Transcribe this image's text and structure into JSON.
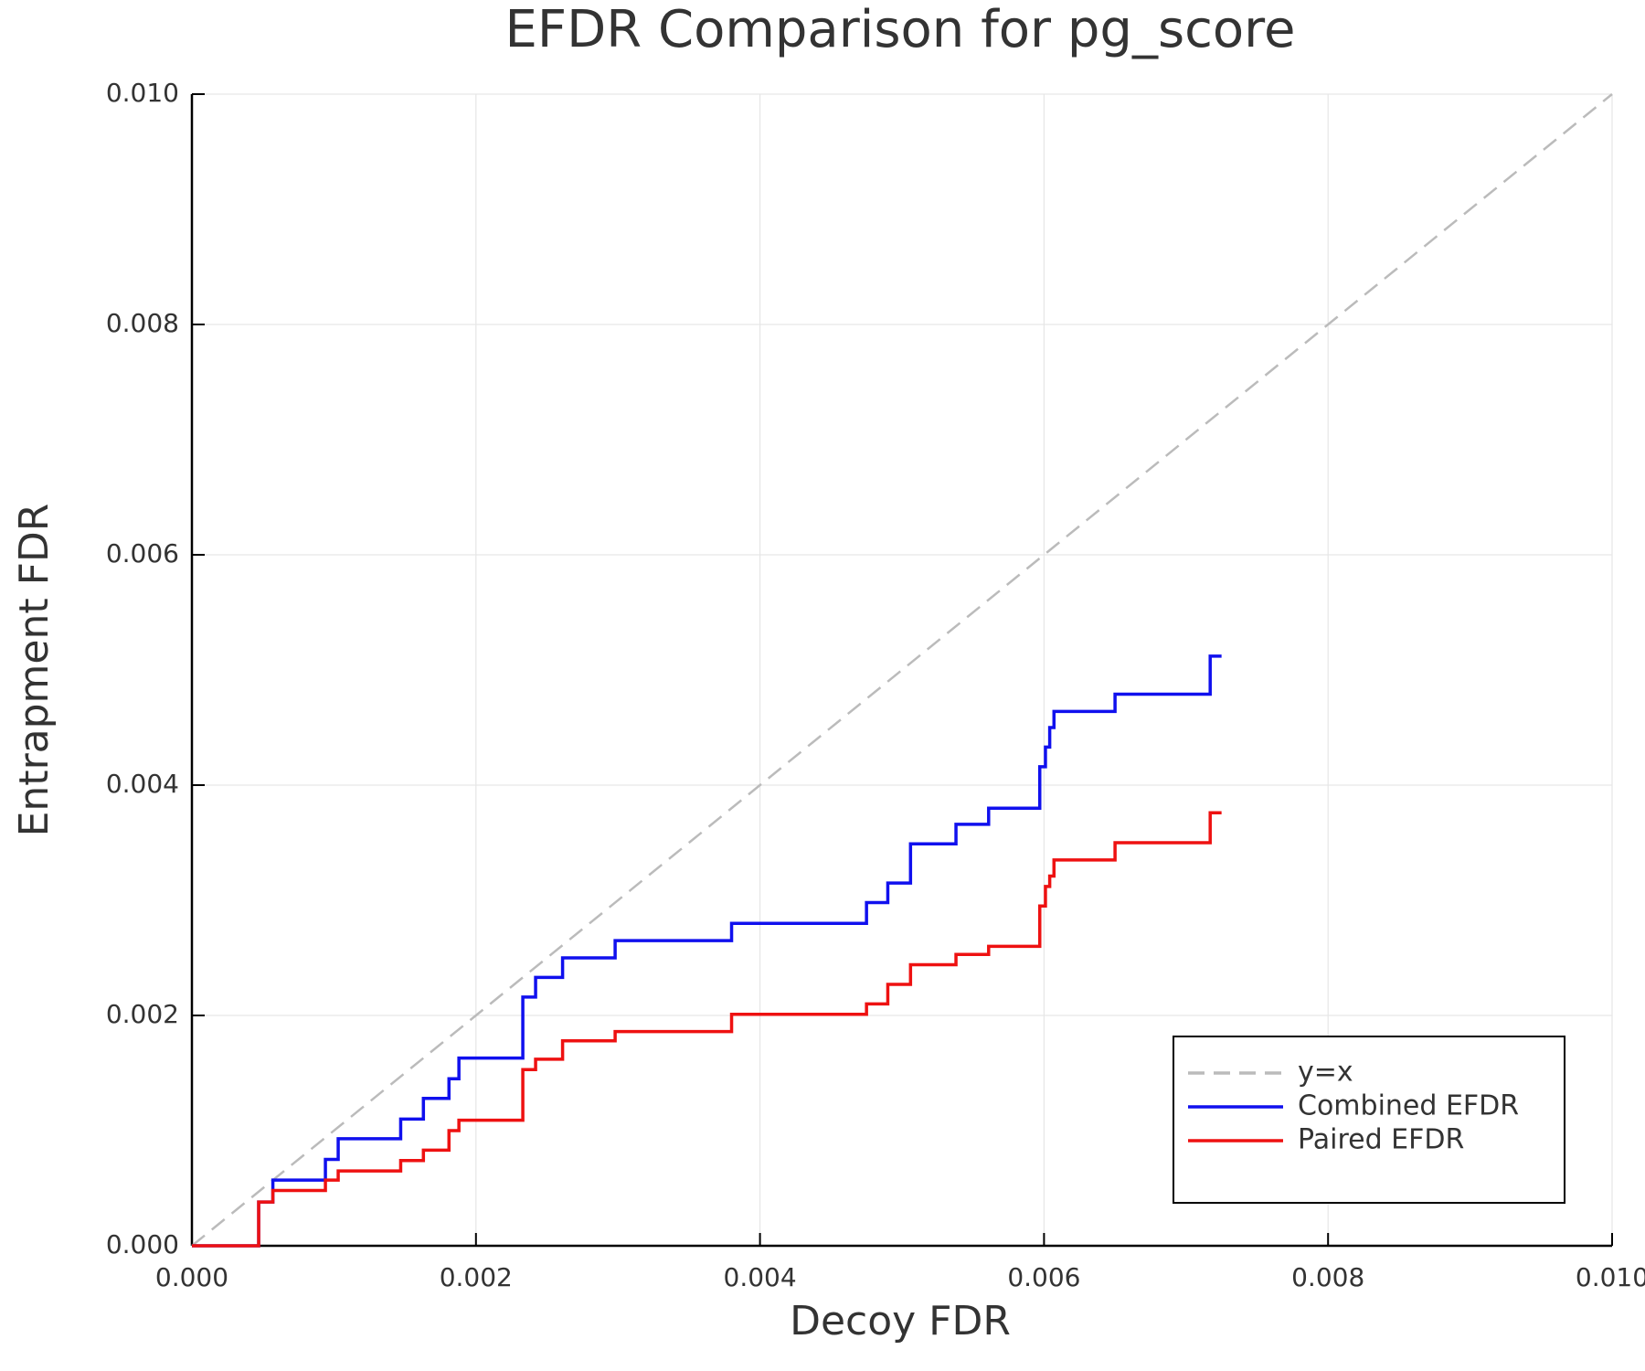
{
  "chart_data": {
    "type": "line",
    "step": "post",
    "title": "EFDR Comparison for pg_score",
    "xlabel": "Decoy FDR",
    "ylabel": "Entrapment FDR",
    "xlim": [
      0,
      0.01
    ],
    "ylim": [
      0,
      0.01
    ],
    "grid": true,
    "legend": "lower right",
    "xticks": [
      {
        "value": 0,
        "label": "0.000"
      },
      {
        "value": 0.002,
        "label": "0.002"
      },
      {
        "value": 0.004,
        "label": "0.004"
      },
      {
        "value": 0.006,
        "label": "0.006"
      },
      {
        "value": 0.008,
        "label": "0.008"
      },
      {
        "value": 0.01,
        "label": "0.010"
      }
    ],
    "yticks": [
      {
        "value": 0,
        "label": "0.000"
      },
      {
        "value": 0.002,
        "label": "0.002"
      },
      {
        "value": 0.004,
        "label": "0.004"
      },
      {
        "value": 0.006,
        "label": "0.006"
      },
      {
        "value": 0.008,
        "label": "0.008"
      },
      {
        "value": 0.01,
        "label": "0.010"
      }
    ],
    "series": [
      {
        "name": "y=x",
        "color": "#bbbbbb",
        "line_style": "dashed",
        "x": [
          0,
          0.01
        ],
        "values": [
          0,
          0.01
        ]
      },
      {
        "name": "Combined EFDR",
        "color": "#1010ee",
        "line_style": "solid",
        "x": [
          0,
          0.00047,
          0.00057,
          0.00094,
          0.00103,
          0.00147,
          0.00163,
          0.00181,
          0.00188,
          0.00233,
          0.00242,
          0.00261,
          0.00298,
          0.0038,
          0.00475,
          0.0049,
          0.00506,
          0.00538,
          0.00561,
          0.00597,
          0.00601,
          0.00604,
          0.00607,
          0.0065,
          0.00717,
          0.00725
        ],
        "values": [
          0,
          0.00038,
          0.00057,
          0.00075,
          0.00093,
          0.0011,
          0.00128,
          0.00145,
          0.00163,
          0.00216,
          0.00233,
          0.0025,
          0.00265,
          0.0028,
          0.00298,
          0.00315,
          0.00349,
          0.00366,
          0.0038,
          0.00416,
          0.00433,
          0.0045,
          0.00464,
          0.00479,
          0.00512,
          0.00512
        ]
      },
      {
        "name": "Paired EFDR",
        "color": "#ee1111",
        "line_style": "solid",
        "x": [
          0,
          0.00047,
          0.00057,
          0.00094,
          0.00103,
          0.00147,
          0.00163,
          0.00181,
          0.00188,
          0.00233,
          0.00242,
          0.00261,
          0.00298,
          0.0038,
          0.00475,
          0.0049,
          0.00506,
          0.00538,
          0.00561,
          0.00597,
          0.00601,
          0.00604,
          0.00607,
          0.0065,
          0.00717,
          0.00725
        ],
        "values": [
          0,
          0.00038,
          0.00048,
          0.00057,
          0.00065,
          0.00074,
          0.00083,
          0.001,
          0.00109,
          0.00153,
          0.00162,
          0.00178,
          0.00186,
          0.00201,
          0.0021,
          0.00227,
          0.00244,
          0.00253,
          0.0026,
          0.00295,
          0.00312,
          0.00321,
          0.00335,
          0.0035,
          0.00376,
          0.00376
        ]
      }
    ]
  }
}
